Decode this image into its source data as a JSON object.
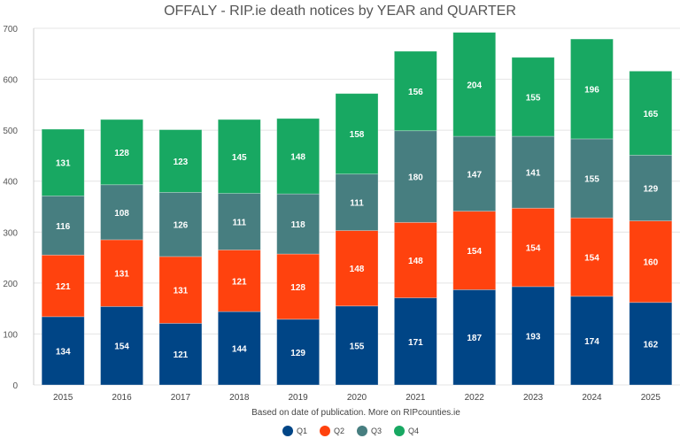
{
  "chart_data": {
    "type": "bar",
    "stacked": true,
    "title": "OFFALY - RIP.ie death notices by YEAR and QUARTER",
    "footnote": "Based on date of publication. More on RIPcounties.ie",
    "categories": [
      "2015",
      "2016",
      "2017",
      "2018",
      "2019",
      "2020",
      "2021",
      "2022",
      "2023",
      "2024",
      "2025"
    ],
    "series": [
      {
        "name": "Q1",
        "color": "#004586",
        "values": [
          134,
          154,
          121,
          144,
          129,
          155,
          171,
          187,
          193,
          174,
          162
        ]
      },
      {
        "name": "Q2",
        "color": "#ff420e",
        "values": [
          121,
          131,
          131,
          121,
          128,
          148,
          148,
          154,
          154,
          154,
          160
        ]
      },
      {
        "name": "Q3",
        "color": "#477e80",
        "values": [
          116,
          108,
          126,
          111,
          118,
          111,
          180,
          147,
          141,
          155,
          129
        ]
      },
      {
        "name": "Q4",
        "color": "#18a862",
        "values": [
          131,
          128,
          123,
          145,
          148,
          158,
          156,
          204,
          155,
          196,
          165
        ]
      }
    ],
    "ylim": [
      0,
      700
    ],
    "yticks": [
      0,
      100,
      200,
      300,
      400,
      500,
      600,
      700
    ],
    "grid": true,
    "legend": "bottom",
    "data_labels": true
  }
}
